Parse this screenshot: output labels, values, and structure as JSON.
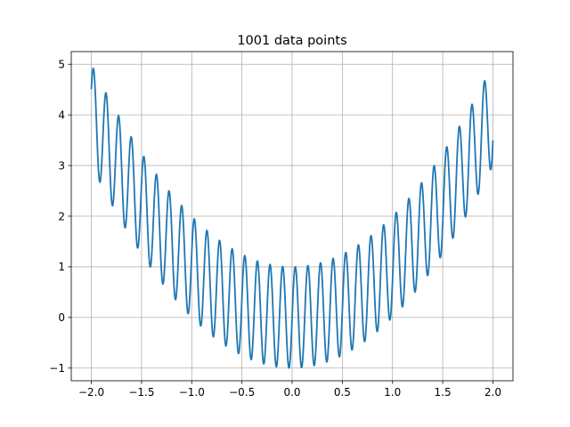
{
  "chart_data": {
    "type": "line",
    "title": "1001 data points",
    "xlabel": "",
    "ylabel": "",
    "xlim": [
      -2.2,
      2.2
    ],
    "ylim": [
      -1.25,
      5.25
    ],
    "grid": true,
    "x_ticks": [
      -2.0,
      -1.5,
      -1.0,
      -0.5,
      0.0,
      0.5,
      1.0,
      1.5,
      2.0
    ],
    "x_tick_labels": [
      "−2.0",
      "−1.5",
      "−1.0",
      "−0.5",
      "0.0",
      "0.5",
      "1.0",
      "1.5",
      "2.0"
    ],
    "y_ticks": [
      -1,
      0,
      1,
      2,
      3,
      4,
      5
    ],
    "y_tick_labels": [
      "−1",
      "0",
      "1",
      "2",
      "3",
      "4",
      "5"
    ],
    "series": [
      {
        "color": "#1f77b4",
        "x_range": [
          -2.0,
          2.0
        ],
        "n_points": 1001,
        "formula": "x^2 + sin(50*x)"
      }
    ]
  }
}
